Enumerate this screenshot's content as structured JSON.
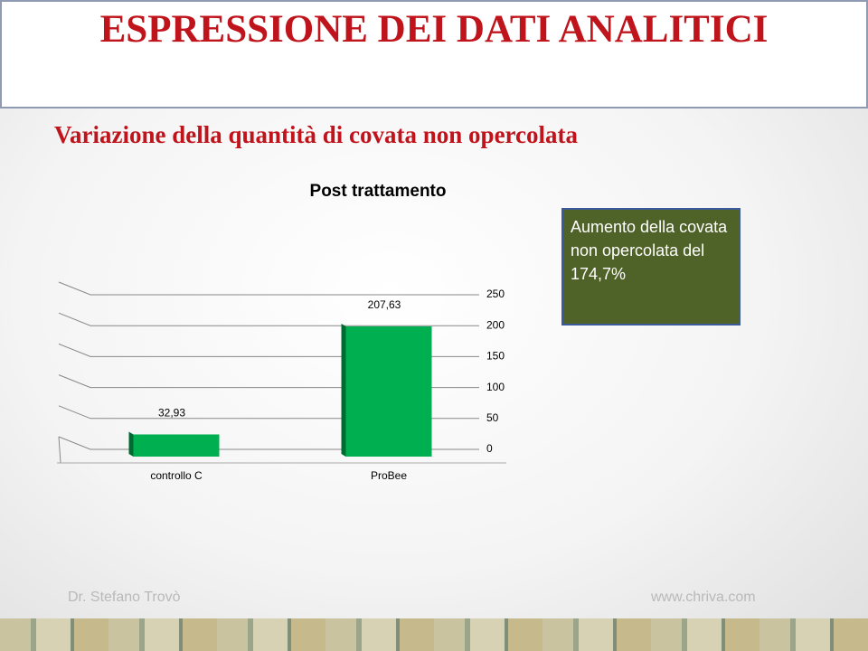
{
  "slide": {
    "title": "ESPRESSIONE DEI DATI ANALITICI",
    "subtitle": "Variazione della quantità di covata non opercolata",
    "footer_left": "Dr. Stefano Trovò",
    "footer_right": "www.chriva.com"
  },
  "chart_data": {
    "type": "bar",
    "title": "Post trattamento",
    "categories": [
      "controllo C",
      "ProBee"
    ],
    "values": [
      32.93,
      207.63
    ],
    "value_labels": [
      "32,93",
      "207,63"
    ],
    "color": "#00b050",
    "ylim": [
      0,
      250
    ],
    "yticks": [
      0,
      50,
      100,
      150,
      200,
      250
    ],
    "grid": true,
    "annotation": "Aumento della covata non opercolata del 174,7%"
  }
}
